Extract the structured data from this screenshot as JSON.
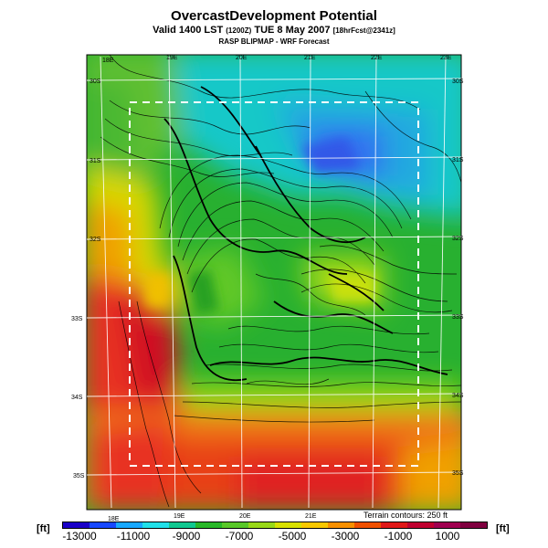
{
  "title": "OvercastDevelopment Potential",
  "subtitle_main": "Valid 1400 LST",
  "subtitle_small1": "(1200Z)",
  "subtitle_date": "TUE 8 May 2007",
  "subtitle_small2": "[18hrFcst@2341z]",
  "subtitle2": "RASP BLIPMAP - WRF Forecast",
  "terrain_note": "Terrain contours: 250 ft",
  "unit_label": "[ft]",
  "lon_labels_top": [
    "18E",
    "19E",
    "20E",
    "21E",
    "22E",
    "23E"
  ],
  "lon_labels_bottom": [
    "18E",
    "19E",
    "20E",
    "21E"
  ],
  "lat_labels_left": [
    "30S",
    "31S",
    "32S",
    "33S",
    "34S",
    "35S"
  ],
  "lat_labels_right": [
    "30S",
    "31S",
    "32S",
    "33S",
    "34S",
    "35S"
  ],
  "colorbar": {
    "labels": [
      "-13000",
      "-11000",
      "-9000",
      "-7000",
      "-5000",
      "-3000",
      "-1000",
      "1000"
    ],
    "colors": [
      "#1a00c8",
      "#1848ff",
      "#18a8ff",
      "#20e0e8",
      "#10c890",
      "#28b828",
      "#58c828",
      "#98d818",
      "#d8e000",
      "#f8c800",
      "#f89000",
      "#f05000",
      "#e01818",
      "#c00030",
      "#a00050",
      "#800040"
    ]
  }
}
